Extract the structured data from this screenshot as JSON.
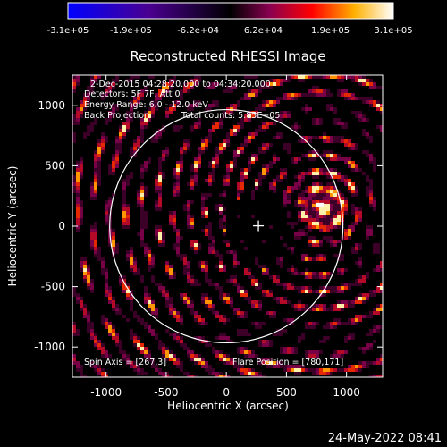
{
  "chart_data": {
    "type": "heatmap",
    "title": "Reconstructed RHESSI Image",
    "xlabel": "Heliocentric X (arcsec)",
    "ylabel": "Heliocentric Y (arcsec)",
    "xlim": [
      -1280,
      1300
    ],
    "ylim": [
      -1250,
      1250
    ],
    "x_ticks": [
      -1000,
      -500,
      0,
      500,
      1000
    ],
    "y_ticks": [
      -1000,
      -500,
      0,
      500,
      1000
    ],
    "colorbar": {
      "range": [
        -310000,
        310000
      ],
      "tick_labels": [
        "-3.1e+05",
        "-1.9e+05",
        "-6.2e+04",
        "6.2e+04",
        "1.9e+05",
        "3.1e+05"
      ],
      "tick_values": [
        -310000,
        -190000,
        -62000,
        62000,
        190000,
        310000
      ]
    },
    "solar_disk": {
      "center": [
        0,
        0
      ],
      "radius": 970
    },
    "spin_axis": [
      267,
      3
    ],
    "flare_position": [
      780,
      171
    ],
    "annotations": {
      "time_range": "2-Dec-2015 04:28:20.000 to 04:34:20.000",
      "detectors": "Detectors: 5F 7F, Att 0",
      "energy": "Energy Range: 6.0 - 12.0 keV",
      "method": "Back Projection",
      "counts": "Total counts: 5.85E+05",
      "spin_axis_label": "Spin Axis = [267,3]",
      "flare_position_label": "Flare Position = [780,171]"
    }
  },
  "footer": {
    "timestamp": "24-May-2022 08:41"
  },
  "colors": {
    "background": "#000000",
    "foreground": "#ffffff"
  }
}
